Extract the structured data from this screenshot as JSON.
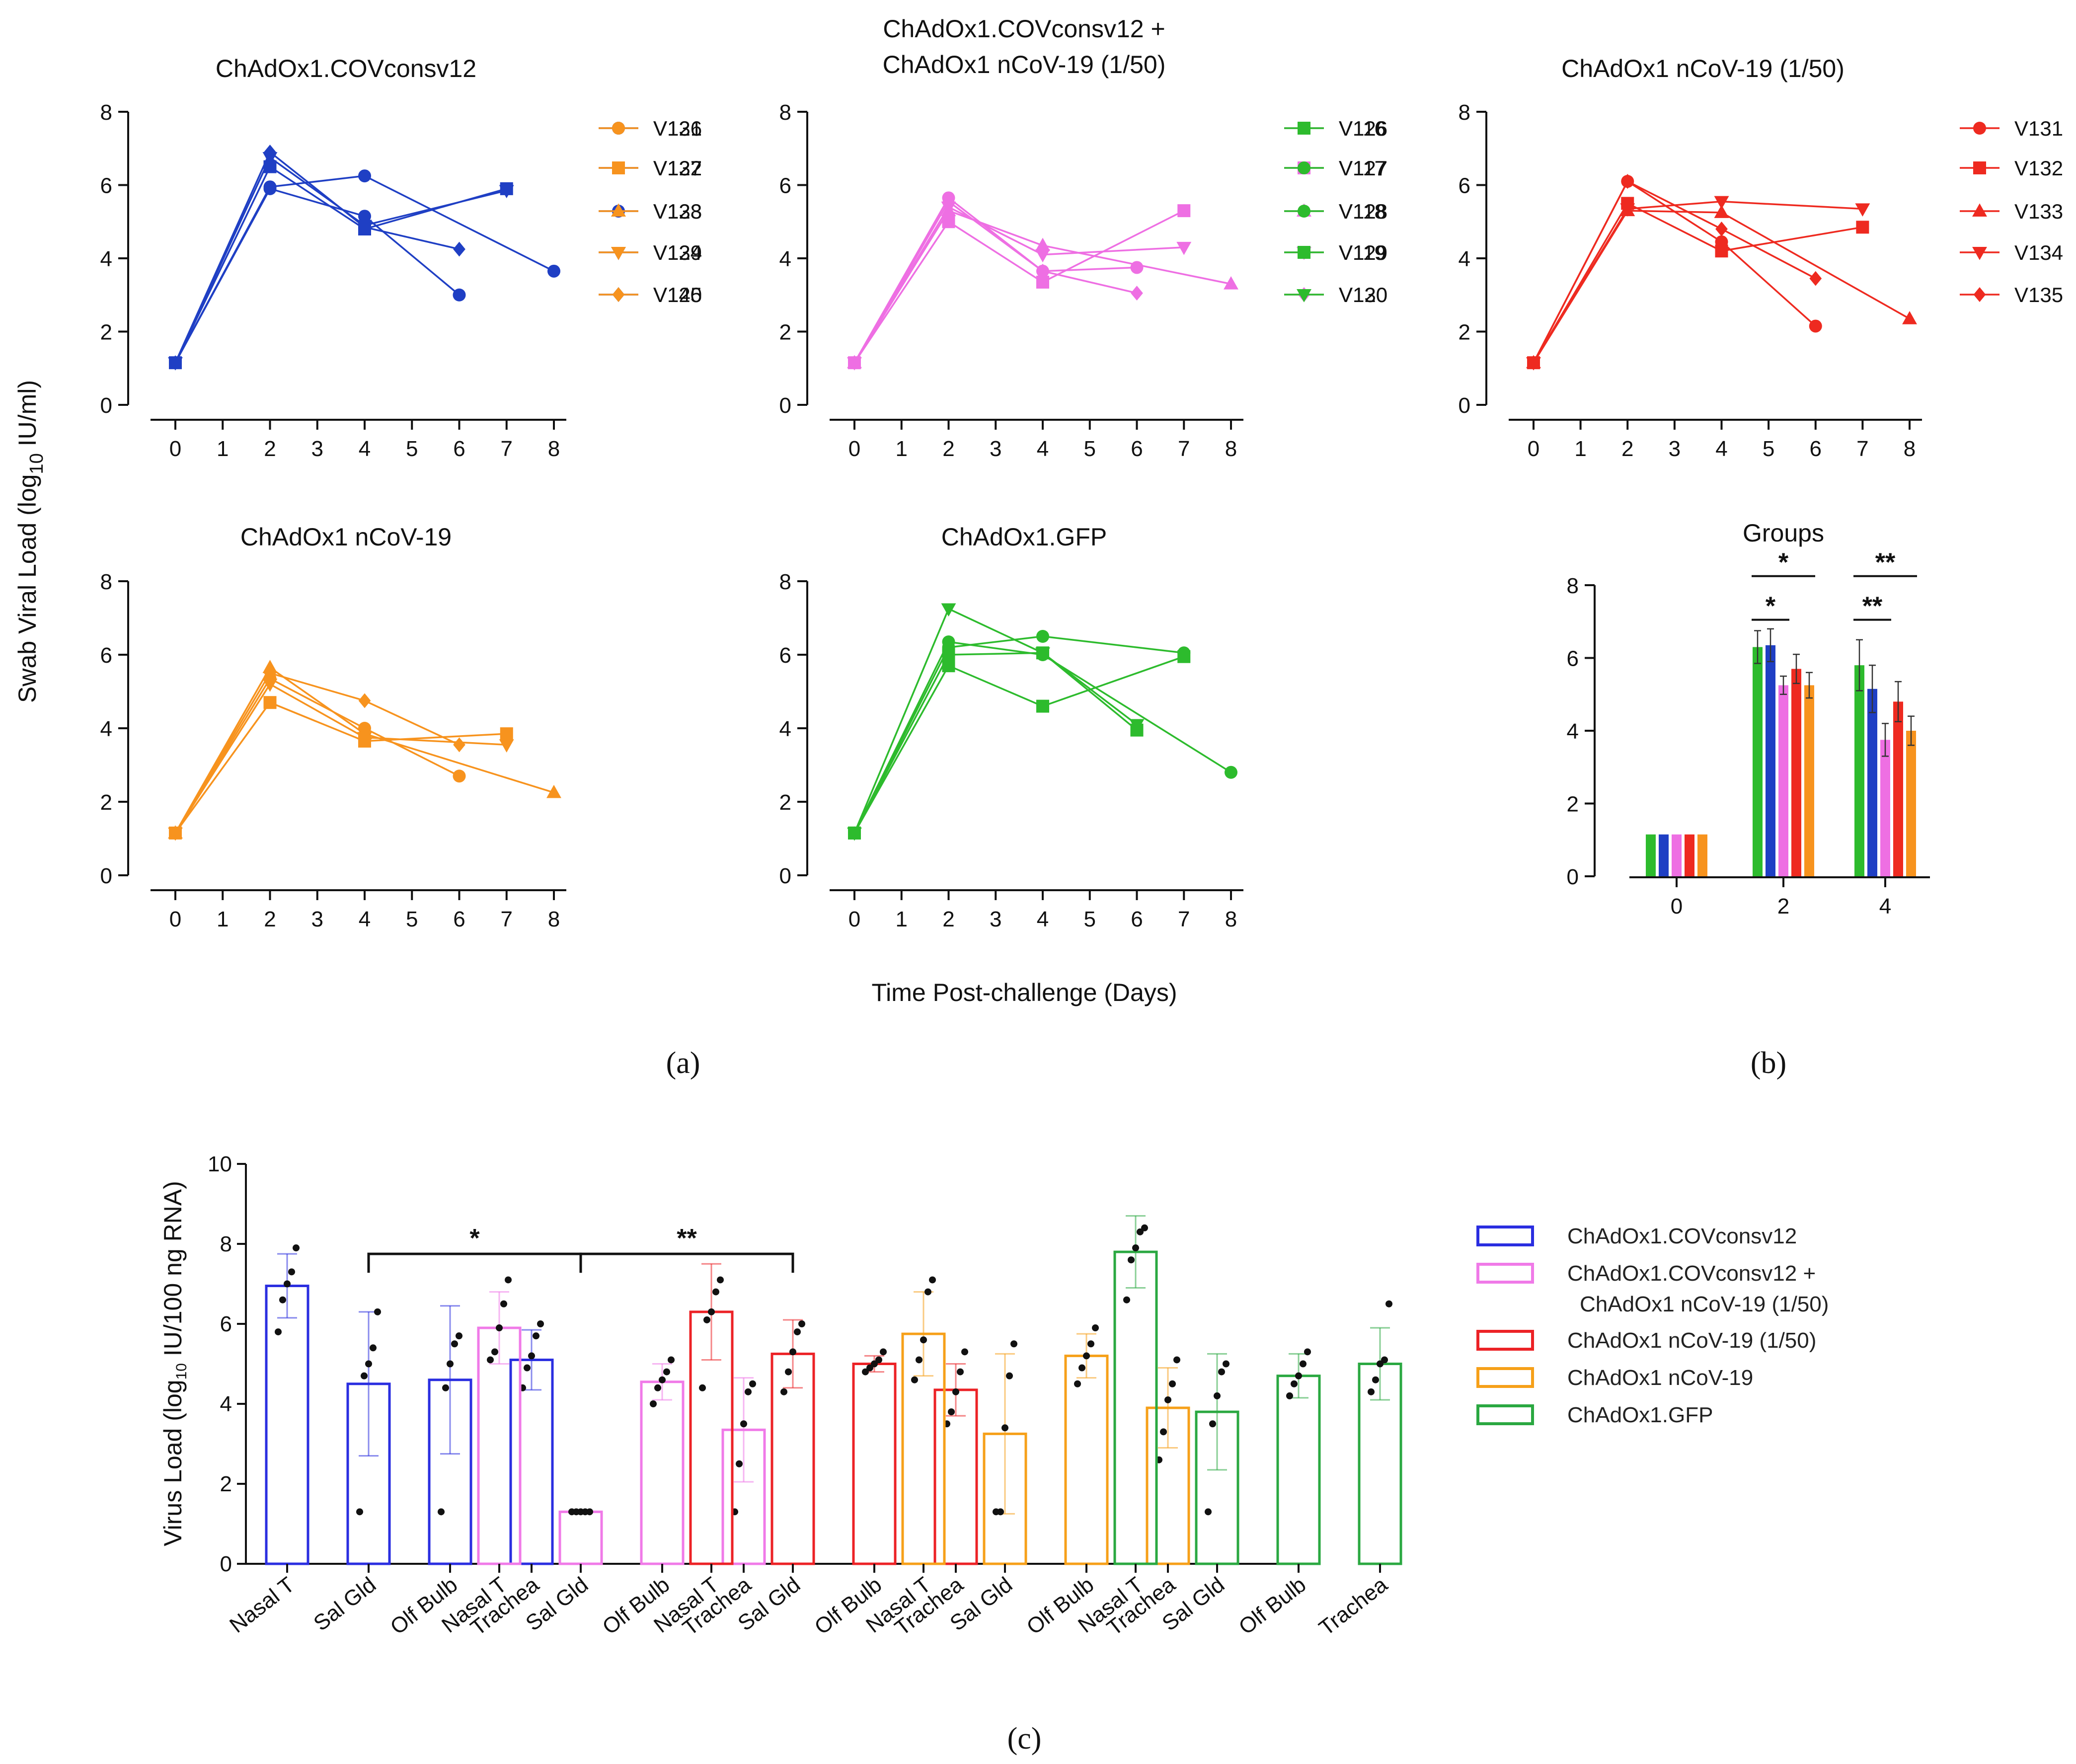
{
  "figure": {
    "shared_ylabel": "Swab Viral Load (log10 IU/ml)",
    "shared_xlabel": "Time Post-challenge (Days)",
    "panel_labels": [
      "(a)",
      "(b)",
      "(c)"
    ]
  },
  "chart_data": [
    {
      "id": "a1",
      "type": "line",
      "title": "ChAdOx1.COVconsv12",
      "color": "#1f3fc4",
      "x_ticks": [
        0,
        1,
        2,
        3,
        4,
        5,
        6,
        7,
        8
      ],
      "ylim": [
        0,
        8
      ],
      "y_ticks": [
        0,
        2,
        4,
        6,
        8
      ],
      "series": [
        {
          "name": "V121",
          "marker": "circle",
          "x": [
            0,
            2,
            4,
            6
          ],
          "y": [
            1.15,
            5.9,
            5.15,
            3.0
          ]
        },
        {
          "name": "V122",
          "marker": "square",
          "x": [
            0,
            2,
            4,
            7
          ],
          "y": [
            1.15,
            6.5,
            4.8,
            5.9
          ]
        },
        {
          "name": "V123",
          "marker": "circle",
          "x": [
            0,
            2,
            4,
            8
          ],
          "y": [
            1.15,
            5.95,
            6.25,
            3.65
          ]
        },
        {
          "name": "V124",
          "marker": "tri-down",
          "x": [
            0,
            2,
            4,
            7
          ],
          "y": [
            1.15,
            6.75,
            4.9,
            5.85
          ]
        },
        {
          "name": "V125",
          "marker": "diamond",
          "x": [
            0,
            2,
            4,
            6
          ],
          "y": [
            1.15,
            6.9,
            4.85,
            4.25
          ]
        }
      ]
    },
    {
      "id": "a2",
      "type": "line",
      "title": "ChAdOx1.COVconsv12 + ChAdOx1 nCoV-19 (1/50)",
      "title_lines": [
        "ChAdOx1.COVconsv12 +",
        "ChAdOx1 nCoV-19 (1/50)"
      ],
      "color": "#ee6fe3",
      "x_ticks": [
        0,
        1,
        2,
        3,
        4,
        5,
        6,
        7,
        8
      ],
      "ylim": [
        0,
        8
      ],
      "y_ticks": [
        0,
        2,
        4,
        6,
        8
      ],
      "series": [
        {
          "name": "V126",
          "marker": "circle",
          "x": [
            0,
            2,
            4,
            6
          ],
          "y": [
            1.15,
            5.65,
            3.65,
            3.75
          ]
        },
        {
          "name": "V127",
          "marker": "square",
          "x": [
            0,
            2,
            4,
            7
          ],
          "y": [
            1.15,
            5.0,
            3.35,
            5.3
          ]
        },
        {
          "name": "V128",
          "marker": "tri-up",
          "x": [
            0,
            2,
            4,
            8
          ],
          "y": [
            1.15,
            5.3,
            4.35,
            3.3
          ]
        },
        {
          "name": "V129",
          "marker": "tri-down",
          "x": [
            0,
            2,
            4,
            7
          ],
          "y": [
            1.15,
            5.4,
            4.1,
            4.3
          ]
        },
        {
          "name": "V130",
          "marker": "diamond",
          "x": [
            0,
            2,
            4,
            6
          ],
          "y": [
            1.15,
            5.55,
            3.65,
            3.05
          ]
        }
      ]
    },
    {
      "id": "a3",
      "type": "line",
      "title": "ChAdOx1 nCoV-19 (1/50)",
      "color": "#ee2a20",
      "x_ticks": [
        0,
        1,
        2,
        3,
        4,
        5,
        6,
        7,
        8
      ],
      "ylim": [
        0,
        8
      ],
      "y_ticks": [
        0,
        2,
        4,
        6,
        8
      ],
      "series": [
        {
          "name": "V131",
          "marker": "circle",
          "x": [
            0,
            2,
            4,
            6
          ],
          "y": [
            1.15,
            6.1,
            4.45,
            2.15
          ]
        },
        {
          "name": "V132",
          "marker": "square",
          "x": [
            0,
            2,
            4,
            7
          ],
          "y": [
            1.15,
            5.5,
            4.2,
            4.85
          ]
        },
        {
          "name": "V133",
          "marker": "tri-up",
          "x": [
            0,
            2,
            4,
            8
          ],
          "y": [
            1.15,
            5.3,
            5.25,
            2.35
          ]
        },
        {
          "name": "V134",
          "marker": "tri-down",
          "x": [
            0,
            2,
            4,
            7
          ],
          "y": [
            1.15,
            5.35,
            5.55,
            5.35
          ]
        },
        {
          "name": "V135",
          "marker": "diamond",
          "x": [
            0,
            2,
            4,
            6
          ],
          "y": [
            1.15,
            6.1,
            4.8,
            3.45
          ]
        }
      ]
    },
    {
      "id": "a4",
      "type": "line",
      "title": "ChAdOx1 nCoV-19",
      "color": "#f7931e",
      "x_ticks": [
        0,
        1,
        2,
        3,
        4,
        5,
        6,
        7,
        8
      ],
      "ylim": [
        0,
        8
      ],
      "y_ticks": [
        0,
        2,
        4,
        6,
        8
      ],
      "series": [
        {
          "name": "V136",
          "marker": "circle",
          "x": [
            0,
            2,
            4,
            6
          ],
          "y": [
            1.15,
            5.35,
            4.0,
            2.7
          ]
        },
        {
          "name": "V137",
          "marker": "square",
          "x": [
            0,
            2,
            4,
            7
          ],
          "y": [
            1.15,
            4.7,
            3.65,
            3.85
          ]
        },
        {
          "name": "V138",
          "marker": "tri-up",
          "x": [
            0,
            2,
            4,
            8
          ],
          "y": [
            1.15,
            5.65,
            3.85,
            2.25
          ]
        },
        {
          "name": "V139",
          "marker": "tri-down",
          "x": [
            0,
            2,
            4,
            7
          ],
          "y": [
            1.15,
            5.2,
            3.75,
            3.55
          ]
        },
        {
          "name": "V140",
          "marker": "diamond",
          "x": [
            0,
            2,
            4,
            6
          ],
          "y": [
            1.15,
            5.5,
            4.75,
            3.55
          ]
        }
      ]
    },
    {
      "id": "a5",
      "type": "line",
      "title": "ChAdOx1.GFP",
      "color": "#2dbb2d",
      "x_ticks": [
        0,
        1,
        2,
        3,
        4,
        5,
        6,
        7,
        8
      ],
      "ylim": [
        0,
        8
      ],
      "y_ticks": [
        0,
        2,
        4,
        6,
        8
      ],
      "series": [
        {
          "name": "V116",
          "marker": "square",
          "x": [
            0,
            2,
            4,
            6
          ],
          "y": [
            1.15,
            6.0,
            6.05,
            3.95
          ]
        },
        {
          "name": "V117",
          "marker": "circle",
          "x": [
            0,
            2,
            4,
            7
          ],
          "y": [
            1.15,
            6.2,
            6.5,
            6.05
          ]
        },
        {
          "name": "V118",
          "marker": "circle",
          "x": [
            0,
            2,
            4,
            8
          ],
          "y": [
            1.15,
            6.35,
            6.0,
            2.8
          ]
        },
        {
          "name": "V119",
          "marker": "square",
          "x": [
            0,
            2,
            4,
            7
          ],
          "y": [
            1.15,
            5.7,
            4.6,
            5.95
          ]
        },
        {
          "name": "V120",
          "marker": "tri-down",
          "x": [
            0,
            2,
            4,
            6
          ],
          "y": [
            1.15,
            7.25,
            6.05,
            4.1
          ]
        }
      ]
    },
    {
      "id": "b",
      "type": "bar",
      "title": "Groups",
      "categories": [
        "0",
        "2",
        "4"
      ],
      "ylim": [
        0,
        8
      ],
      "y_ticks": [
        0,
        2,
        4,
        6,
        8
      ],
      "series": [
        {
          "name": "ChAdOx1.GFP",
          "color": "#2dbb2d",
          "values": [
            1.15,
            6.3,
            5.8
          ],
          "err": [
            0,
            0.45,
            0.7
          ]
        },
        {
          "name": "ChAdOx1.COVconsv12",
          "color": "#1f3fc4",
          "values": [
            1.15,
            6.35,
            5.15
          ],
          "err": [
            0,
            0.45,
            0.65
          ]
        },
        {
          "name": "ChAdOx1.COVconsv12 + ChAdOx1 nCoV-19 (1/50)",
          "color": "#ee6fe3",
          "values": [
            1.15,
            5.25,
            3.75
          ],
          "err": [
            0,
            0.25,
            0.45
          ]
        },
        {
          "name": "ChAdOx1 nCoV-19 (1/50)",
          "color": "#ee2a20",
          "values": [
            1.15,
            5.7,
            4.8
          ],
          "err": [
            0,
            0.4,
            0.55
          ]
        },
        {
          "name": "ChAdOx1 nCoV-19",
          "color": "#f7931e",
          "values": [
            1.15,
            5.25,
            4.0
          ],
          "err": [
            0,
            0.35,
            0.4
          ]
        }
      ],
      "annotations": [
        {
          "label": "*",
          "category": 1,
          "from": 0,
          "to": 4,
          "level": 8.25
        },
        {
          "label": "*",
          "category": 1,
          "from": 0,
          "to": 2,
          "level": 7.05
        },
        {
          "label": "**",
          "category": 2,
          "from": 0,
          "to": 4,
          "level": 8.25
        },
        {
          "label": "**",
          "category": 2,
          "from": 0,
          "to": 2,
          "level": 7.05
        }
      ]
    },
    {
      "id": "c",
      "type": "bar",
      "title": "",
      "ylabel": "Virus Load (log10 IU/100 ng RNA)",
      "ylim": [
        0,
        10
      ],
      "y_ticks": [
        0,
        2,
        4,
        6,
        8,
        10
      ],
      "tissues": [
        "Nasal T",
        "Sal Gld",
        "Olf Bulb",
        "Trachea"
      ],
      "groups": [
        {
          "name": "ChAdOx1.COVconsv12",
          "color": "#2a2ee0",
          "means": [
            6.95,
            4.5,
            4.6,
            5.1
          ],
          "sd": [
            0.8,
            1.8,
            1.85,
            0.75
          ],
          "points": [
            [
              5.8,
              6.6,
              7.0,
              7.3,
              7.9
            ],
            [
              1.3,
              4.7,
              5.0,
              5.4,
              6.3
            ],
            [
              1.3,
              4.4,
              5.0,
              5.5,
              5.7
            ],
            [
              4.4,
              4.9,
              5.2,
              5.7,
              6.0
            ]
          ]
        },
        {
          "name": "ChAdOx1.COVconsv12 + ChAdOx1 nCoV-19 (1/50)",
          "color": "#f07ae8",
          "means": [
            5.9,
            1.3,
            4.55,
            3.35
          ],
          "sd": [
            0.9,
            0,
            0.45,
            1.3
          ],
          "points": [
            [
              5.1,
              5.3,
              5.9,
              6.5,
              7.1
            ],
            [
              1.3,
              1.3,
              1.3,
              1.3,
              1.3
            ],
            [
              4.0,
              4.4,
              4.6,
              4.8,
              5.1
            ],
            [
              1.3,
              2.5,
              3.5,
              4.3,
              4.5
            ]
          ]
        },
        {
          "name": "ChAdOx1 nCoV-19 (1/50)",
          "color": "#ec2226",
          "means": [
            6.3,
            5.25,
            5.0,
            4.35
          ],
          "sd": [
            1.2,
            0.85,
            0.2,
            0.65
          ],
          "points": [
            [
              4.4,
              6.1,
              6.3,
              6.8,
              7.1
            ],
            [
              4.3,
              4.8,
              5.3,
              5.8,
              6.0
            ],
            [
              4.8,
              4.9,
              5.0,
              5.1,
              5.3
            ],
            [
              3.5,
              3.8,
              4.3,
              4.8,
              5.3
            ]
          ]
        },
        {
          "name": "ChAdOx1 nCoV-19",
          "color": "#f6a019",
          "means": [
            5.75,
            3.25,
            5.2,
            3.9
          ],
          "sd": [
            1.05,
            2.0,
            0.55,
            1.0
          ],
          "points": [
            [
              4.6,
              5.1,
              5.6,
              6.8,
              7.1
            ],
            [
              1.3,
              1.3,
              3.4,
              4.7,
              5.5
            ],
            [
              4.5,
              4.9,
              5.2,
              5.5,
              5.9
            ],
            [
              2.6,
              3.3,
              4.1,
              4.5,
              5.1
            ]
          ]
        },
        {
          "name": "ChAdOx1.GFP",
          "color": "#2aa841",
          "means": [
            7.8,
            3.8,
            4.7,
            5.0
          ],
          "sd": [
            0.9,
            1.45,
            0.55,
            0.9
          ],
          "points": [
            [
              6.6,
              7.6,
              7.9,
              8.3,
              8.4
            ],
            [
              1.3,
              3.5,
              4.2,
              4.8,
              5.0
            ],
            [
              4.2,
              4.5,
              4.7,
              5.0,
              5.3
            ],
            [
              4.3,
              4.6,
              5.0,
              5.1,
              6.5
            ]
          ]
        }
      ],
      "annotations": [
        {
          "label": "*",
          "from_group": 0,
          "from_tissue": 1,
          "to_group": 1,
          "to_tissue": 1,
          "level": 7.75
        },
        {
          "label": "**",
          "from_group": 1,
          "from_tissue": 1,
          "to_group": 2,
          "to_tissue": 1,
          "level": 7.75
        }
      ],
      "legend": [
        {
          "lines": [
            "ChAdOx1.COVconsv12"
          ],
          "color": "#2a2ee0"
        },
        {
          "lines": [
            "ChAdOx1.COVconsv12 +",
            "ChAdOx1 nCoV-19 (1/50)"
          ],
          "color": "#f07ae8"
        },
        {
          "lines": [
            "ChAdOx1 nCoV-19 (1/50)"
          ],
          "color": "#ec2226"
        },
        {
          "lines": [
            "ChAdOx1 nCoV-19"
          ],
          "color": "#f6a019"
        },
        {
          "lines": [
            "ChAdOx1.GFP"
          ],
          "color": "#2aa841"
        }
      ]
    }
  ]
}
